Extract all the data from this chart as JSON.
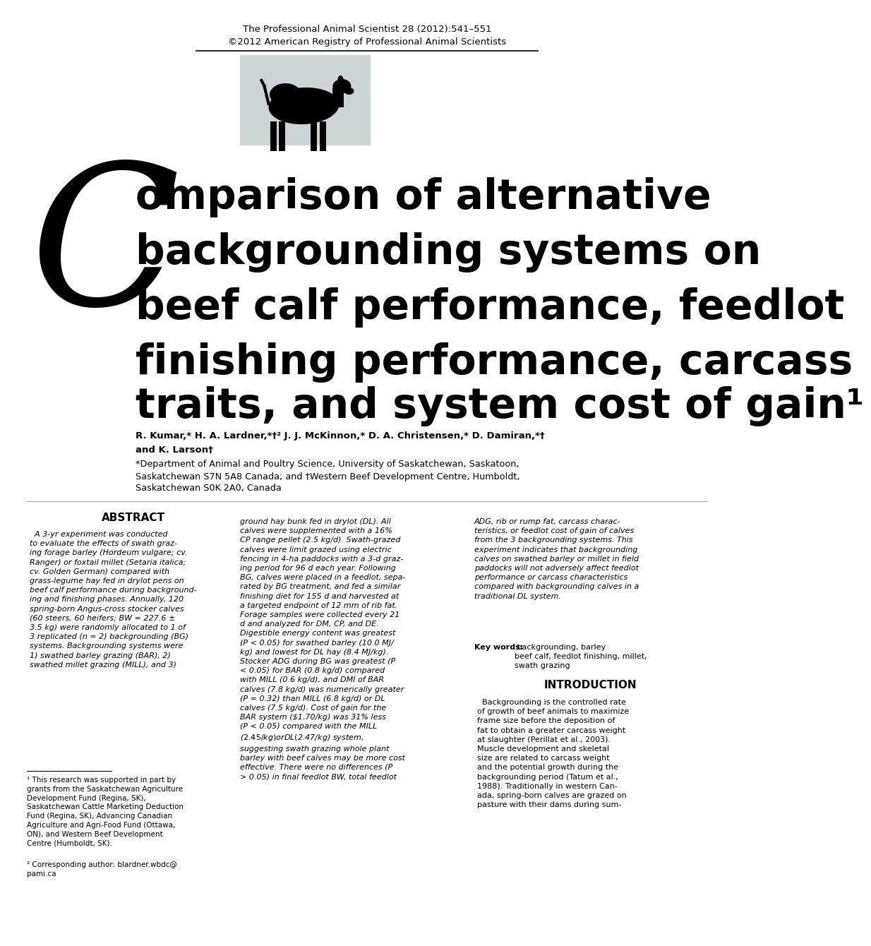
{
  "header_line1": "The Professional Animal Scientist 28 (2012):541–551",
  "header_line2": "©2012 American Registry of Professional Animal Scientists",
  "title_C": "C",
  "title_rest_lines": [
    "omparison of alternative",
    "backgrounding systems on",
    "beef calf performance, feedlot",
    "finishing performance, carcass",
    "traits, and system cost of gain¹"
  ],
  "authors_line1": "R. Kumar,* H. A. Lardner,*†² J. J. McKinnon,* D. A. Christensen,* D. Damiran,*†",
  "authors_line2": "and K. Larson†",
  "affiliation1": "*Department of Animal and Poultry Science, University of Saskatchewan, Saskatoon,",
  "affiliation2": "Saskatchewan S7N 5A8 Canada; and †Western Beef Development Centre, Humboldt,",
  "affiliation3": "Saskatchewan S0K 2A0, Canada",
  "abstract_title": "ABSTRACT",
  "abstract_col1": "  A 3-yr experiment was conducted\nto evaluate the effects of swath graz-\ning forage barley (Hordeum vulgare; cv.\nRanger) or foxtail millet (Setaria italica;\ncv. Golden German) compared with\ngrass-legume hay fed in drylot pens on\nbeef calf performance during background-\ning and finishing phases. Annually, 120\nspring-born Angus-cross stocker calves\n(60 steers, 60 heifers; BW = 227.6 ±\n3.5 kg) were randomly allocated to 1 of\n3 replicated (n = 2) backgrounding (BG)\nsystems. Backgrounding systems were\n1) swathed barley grazing (BAR), 2)\nswathed millet grazing (MILL), and 3)",
  "abstract_col2": "ground hay bunk fed in drylot (DL). All\ncalves were supplemented with a 16%\nCP range pellet (2.5 kg/d). Swath-grazed\ncalves were limit grazed using electric\nfencing in 4-ha paddocks with a 3-d graz-\ning period for 96 d each year. Following\nBG, calves were placed in a feedlot, sepa-\nrated by BG treatment, and fed a similar\nfinishing diet for 155 d and harvested at\na targeted endpoint of 12 mm of rib fat.\nForage samples were collected every 21\nd and analyzed for DM, CP, and DE.\nDigestible energy content was greatest\n(P < 0.05) for swathed barley (10.0 MJ/\nkg) and lowest for DL hay (8.4 MJ/kg).\nStocker ADG during BG was greatest (P\n< 0.05) for BAR (0.8 kg/d) compared\nwith MILL (0.6 kg/d), and DMI of BAR\ncalves (7.8 kg/d) was numerically greater\n(P = 0.32) than MILL (6.8 kg/d) or DL\ncalves (7.5 kg/d). Cost of gain for the\nBAR system ($1.70/kg) was 31% less\n(P < 0.05) compared with the MILL\n($2.45/kg) or DL ($2.47/kg) system,\nsuggesting swath grazing whole plant\nbarley with beef calves may be more cost\neffective. There were no differences (P\n> 0.05) in final feedlot BW, total feedlot",
  "abstract_col3": "ADG, rib or rump fat, carcass charac-\nteristics, or feedlot cost of gain of calves\nfrom the 3 backgrounding systems. This\nexperiment indicates that backgrounding\ncalves on swathed barley or millet in field\npaddocks will not adversely affect feedlot\nperformance or carcass characteristics\ncompared with backgrounding calves in a\ntraditional DL system.",
  "keywords_bold": "Key words:",
  "keywords_text": " backgrounding, barley\nbeef calf, feedlot finishing, millet,\nswath grazing",
  "intro_title": "INTRODUCTION",
  "intro_text": "  Backgrounding is the controlled rate\nof growth of beef animals to maximize\nframe size before the deposition of\nfat to obtain a greater carcass weight\nat slaughter (Perillat et al., 2003).\nMuscle development and skeletal\nsize are related to carcass weight\nand the potential growth during the\nbackgrounding period (Tatum et al.,\n1988). Traditionally in western Can-\nada, spring-born calves are grazed on\npasture with their dams during sum-",
  "footnote1": "¹ This research was supported in part by\ngrants from the Saskatchewan Agriculture\nDevelopment Fund (Regina, SK),\nSaskatchewan Cattle Marketing Deduction\nFund (Regina, SK), Advancing Canadian\nAgriculture and Agri-Food Fund (Ottawa,\nON), and Western Beef Development\nCentre (Humboldt, SK).",
  "footnote2": "² Corresponding author: blardner.wbdc@\npami.ca",
  "bg_color": "#ffffff",
  "text_color": "#000000",
  "cow_box_color": "#cdd4d4"
}
